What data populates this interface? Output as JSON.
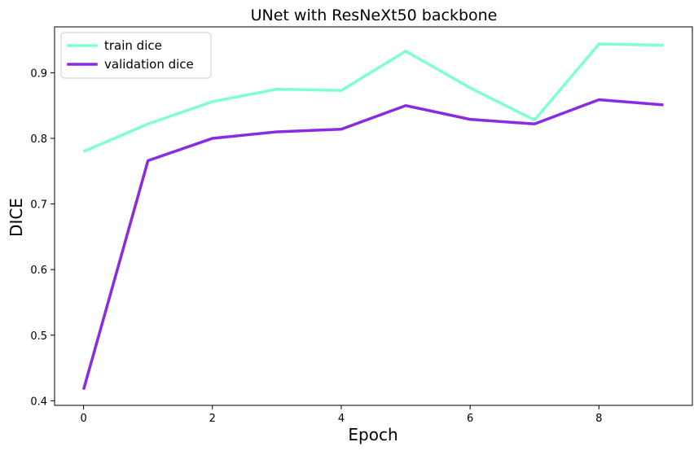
{
  "chart_data": {
    "type": "line",
    "title": "UNet with ResNeXt50 backbone",
    "xlabel": "Epoch",
    "ylabel": "DICE",
    "x": [
      0,
      1,
      2,
      3,
      4,
      5,
      6,
      7,
      8,
      9
    ],
    "xlim": [
      -0.45,
      9.45
    ],
    "ylim": [
      0.393,
      0.97
    ],
    "xticks": [
      0,
      2,
      4,
      6,
      8
    ],
    "yticks": [
      0.4,
      0.5,
      0.6,
      0.7,
      0.8,
      0.9
    ],
    "xtick_labels": [
      "0",
      "2",
      "4",
      "6",
      "8"
    ],
    "ytick_labels": [
      "0.4",
      "0.5",
      "0.6",
      "0.7",
      "0.8",
      "0.9"
    ],
    "grid": false,
    "legend_position": "top-left",
    "series": [
      {
        "name": "train dice",
        "color": "#7fffd4",
        "values": [
          0.78,
          0.822,
          0.856,
          0.875,
          0.873,
          0.933,
          0.877,
          0.828,
          0.944,
          0.942
        ]
      },
      {
        "name": "validation dice",
        "color": "#8a2be2",
        "values": [
          0.417,
          0.766,
          0.8,
          0.81,
          0.814,
          0.85,
          0.829,
          0.822,
          0.859,
          0.851
        ]
      }
    ]
  }
}
